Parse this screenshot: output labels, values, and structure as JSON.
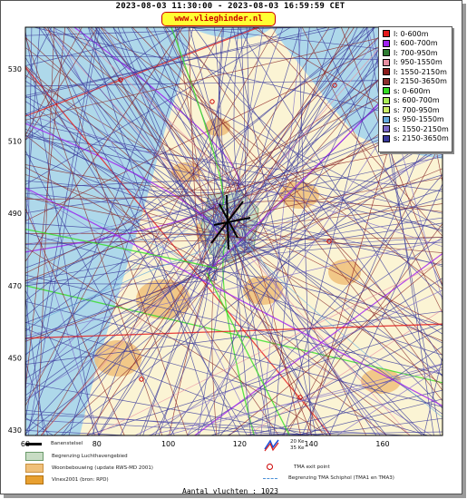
{
  "header": {
    "title": "2023-08-03 11:30:00 - 2023-08-03 16:59:59 CET",
    "site": "www.vlieghinder.nl"
  },
  "map": {
    "y_ticks": [
      "530",
      "510",
      "490",
      "470",
      "450",
      "430"
    ],
    "x_ticks": [
      "60",
      "80",
      "100",
      "120",
      "140",
      "160"
    ],
    "colors": {
      "water": "#aed8ea",
      "land": "#fbf4d4",
      "urban": "#f0c07a",
      "airport": "#c8dcc4"
    }
  },
  "legend": [
    {
      "label": "l: 0-600m",
      "color": "#e31a1c"
    },
    {
      "label": "l: 600-700m",
      "color": "#a020f0"
    },
    {
      "label": "l: 700-950m",
      "color": "#2e7d32"
    },
    {
      "label": "l: 950-1550m",
      "color": "#e88fa2"
    },
    {
      "label": "l: 1550-2150m",
      "color": "#8b1a1a"
    },
    {
      "label": "l: 2150-3650m",
      "color": "#8b2e2e"
    },
    {
      "label": "s: 0-600m",
      "color": "#33dd22"
    },
    {
      "label": "s: 600-700m",
      "color": "#aaee55"
    },
    {
      "label": "s: 700-950m",
      "color": "#ccee66"
    },
    {
      "label": "s: 950-1550m",
      "color": "#66aadd"
    },
    {
      "label": "s: 1550-2150m",
      "color": "#7b68c8"
    },
    {
      "label": "s: 2150-3650m",
      "color": "#3a3a9a"
    }
  ],
  "map_legend": {
    "runway": "Banenstelsel",
    "airport_area": "Begrenzing Luchthavengebied",
    "housing": "Woonbebouwing (update RWS-MD 2001)",
    "vinex": "Vinex2001 (bron: RPD)",
    "noise_20": "20 Ke",
    "noise_35": "35 Ke",
    "tma_exit": "TMA exit point",
    "tma_boundary": "Begrenzing TMA Schiphol  (TMA1 en TMA3)"
  },
  "footer": {
    "count_text": "Aantal vluchten : 1023"
  }
}
